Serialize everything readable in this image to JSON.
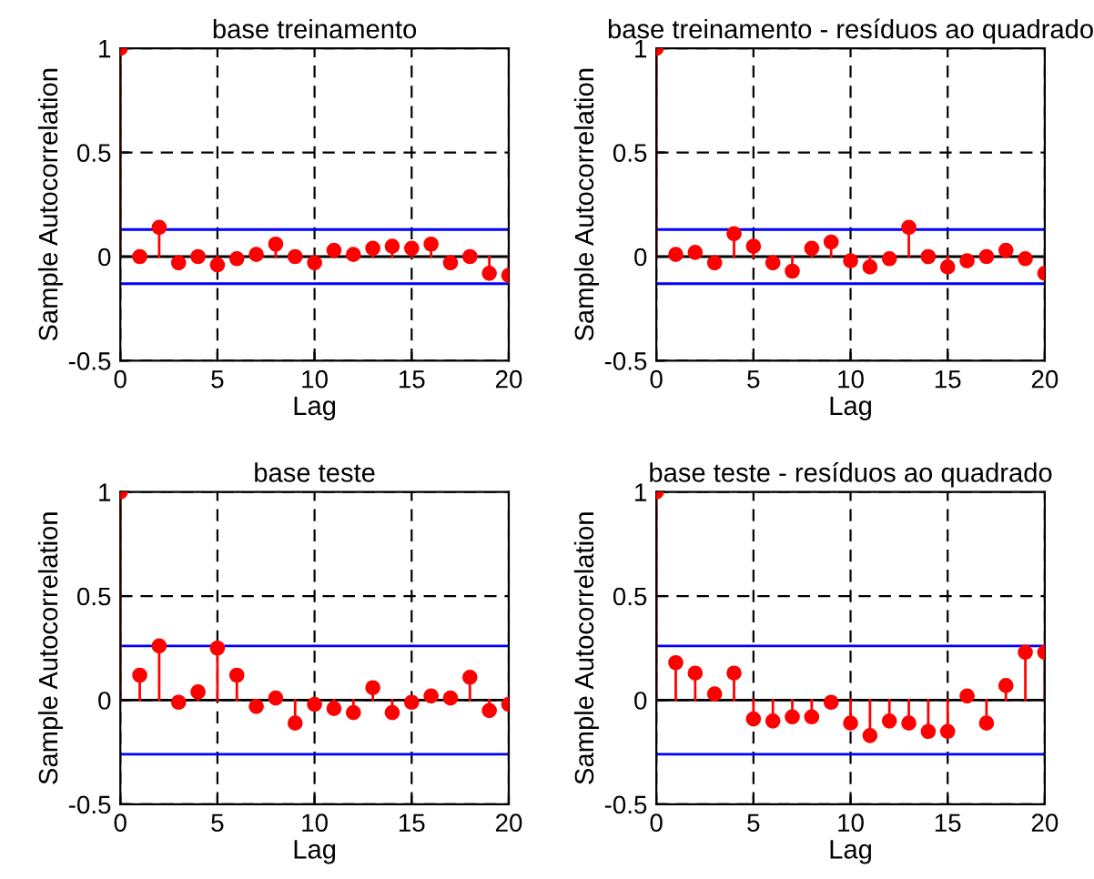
{
  "chart_data": [
    {
      "type": "lollipop",
      "title": "base treinamento",
      "xlabel": "Lag",
      "ylabel": "Sample Autocorrelation",
      "x": [
        0,
        1,
        2,
        3,
        4,
        5,
        6,
        7,
        8,
        9,
        10,
        11,
        12,
        13,
        14,
        15,
        16,
        17,
        18,
        19,
        20
      ],
      "series": [
        {
          "color": "#ff0000",
          "values": [
            1,
            0,
            0.14,
            -0.03,
            0,
            -0.04,
            -0.01,
            0.01,
            0.06,
            0,
            -0.03,
            0.03,
            0.01,
            0.04,
            0.05,
            0.04,
            0.06,
            -0.03,
            0,
            -0.08,
            -0.09
          ]
        }
      ],
      "ref_lines": [
        {
          "axis": "y",
          "value": 0.13,
          "color": "#0000ff"
        },
        {
          "axis": "y",
          "value": -0.13,
          "color": "#0000ff"
        },
        {
          "axis": "y",
          "value": 0,
          "color": "#000000"
        }
      ],
      "xlim": [
        0,
        20
      ],
      "xticks": [
        0,
        5,
        10,
        15,
        20
      ],
      "ylim": [
        -0.5,
        1
      ],
      "yticks": [
        -0.5,
        0,
        0.5,
        1
      ],
      "grid": true,
      "marker": "circle"
    },
    {
      "type": "lollipop",
      "title": "base treinamento - resíduos ao quadrado",
      "xlabel": "Lag",
      "ylabel": "Sample Autocorrelation",
      "x": [
        0,
        1,
        2,
        3,
        4,
        5,
        6,
        7,
        8,
        9,
        10,
        11,
        12,
        13,
        14,
        15,
        16,
        17,
        18,
        19,
        20
      ],
      "series": [
        {
          "color": "#ff0000",
          "values": [
            1,
            0.01,
            0.02,
            -0.03,
            0.11,
            0.05,
            -0.03,
            -0.07,
            0.04,
            0.07,
            -0.02,
            -0.05,
            -0.01,
            0.14,
            0,
            -0.05,
            -0.02,
            0,
            0.03,
            -0.01,
            -0.08
          ]
        }
      ],
      "ref_lines": [
        {
          "axis": "y",
          "value": 0.13,
          "color": "#0000ff"
        },
        {
          "axis": "y",
          "value": -0.13,
          "color": "#0000ff"
        },
        {
          "axis": "y",
          "value": 0,
          "color": "#000000"
        }
      ],
      "xlim": [
        0,
        20
      ],
      "xticks": [
        0,
        5,
        10,
        15,
        20
      ],
      "ylim": [
        -0.5,
        1
      ],
      "yticks": [
        -0.5,
        0,
        0.5,
        1
      ],
      "grid": true,
      "marker": "circle"
    },
    {
      "type": "lollipop",
      "title": "base teste",
      "xlabel": "Lag",
      "ylabel": "Sample Autocorrelation",
      "x": [
        0,
        1,
        2,
        3,
        4,
        5,
        6,
        7,
        8,
        9,
        10,
        11,
        12,
        13,
        14,
        15,
        16,
        17,
        18,
        19,
        20
      ],
      "series": [
        {
          "color": "#ff0000",
          "values": [
            1,
            0.12,
            0.26,
            -0.01,
            0.04,
            0.25,
            0.12,
            -0.03,
            0.01,
            -0.11,
            -0.02,
            -0.04,
            -0.06,
            0.06,
            -0.06,
            -0.01,
            0.02,
            0.01,
            0.11,
            -0.05,
            -0.02
          ]
        }
      ],
      "ref_lines": [
        {
          "axis": "y",
          "value": 0.26,
          "color": "#0000ff"
        },
        {
          "axis": "y",
          "value": -0.26,
          "color": "#0000ff"
        },
        {
          "axis": "y",
          "value": 0,
          "color": "#000000"
        }
      ],
      "xlim": [
        0,
        20
      ],
      "xticks": [
        0,
        5,
        10,
        15,
        20
      ],
      "ylim": [
        -0.5,
        1
      ],
      "yticks": [
        -0.5,
        0,
        0.5,
        1
      ],
      "grid": true,
      "marker": "circle"
    },
    {
      "type": "lollipop",
      "title": "base teste - resíduos ao quadrado",
      "xlabel": "Lag",
      "ylabel": "Sample Autocorrelation",
      "x": [
        0,
        1,
        2,
        3,
        4,
        5,
        6,
        7,
        8,
        9,
        10,
        11,
        12,
        13,
        14,
        15,
        16,
        17,
        18,
        19,
        20
      ],
      "series": [
        {
          "color": "#ff0000",
          "values": [
            1,
            0.18,
            0.13,
            0.03,
            0.13,
            -0.09,
            -0.1,
            -0.08,
            -0.08,
            -0.01,
            -0.11,
            -0.17,
            -0.1,
            -0.11,
            -0.15,
            -0.15,
            0.02,
            -0.11,
            0.07,
            0.23,
            0.23
          ]
        }
      ],
      "ref_lines": [
        {
          "axis": "y",
          "value": 0.26,
          "color": "#0000ff"
        },
        {
          "axis": "y",
          "value": -0.26,
          "color": "#0000ff"
        },
        {
          "axis": "y",
          "value": 0,
          "color": "#000000"
        }
      ],
      "xlim": [
        0,
        20
      ],
      "xticks": [
        0,
        5,
        10,
        15,
        20
      ],
      "ylim": [
        -0.5,
        1
      ],
      "yticks": [
        -0.5,
        0,
        0.5,
        1
      ],
      "grid": true,
      "marker": "circle"
    }
  ]
}
